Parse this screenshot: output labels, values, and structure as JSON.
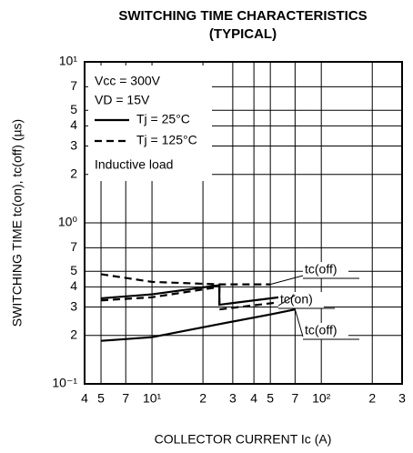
{
  "chart_data": {
    "type": "line",
    "title": "SWITCHING TIME CHARACTERISTICS",
    "subtitle": "(TYPICAL)",
    "x_label": "COLLECTOR CURRENT  Ic (A)",
    "y_label": "SWITCHING TIME  tc(on), tc(off) (µs)",
    "log_x": true,
    "log_y": true,
    "grid": true,
    "xlim": [
      4,
      300
    ],
    "ylim": [
      0.1,
      10
    ],
    "xticks": [
      4,
      5,
      7,
      {
        "value": 10,
        "label": "10¹"
      },
      {
        "value": 20,
        "label": "2"
      },
      {
        "value": 30,
        "label": "3"
      },
      {
        "value": 40,
        "label": "4"
      },
      {
        "value": 50,
        "label": "5"
      },
      {
        "value": 70,
        "label": "7"
      },
      {
        "value": 100,
        "label": "10²"
      },
      {
        "value": 200,
        "label": "2"
      },
      {
        "value": 300,
        "label": "3"
      }
    ],
    "yticks": [
      {
        "value": 0.1,
        "label": "10⁻¹"
      },
      {
        "value": 0.2,
        "label": "2"
      },
      {
        "value": 0.3,
        "label": "3"
      },
      {
        "value": 0.4,
        "label": "4"
      },
      {
        "value": 0.5,
        "label": "5"
      },
      {
        "value": 0.7,
        "label": "7"
      },
      {
        "value": 1,
        "label": "10⁰"
      },
      2,
      3,
      4,
      5,
      7,
      {
        "value": 10,
        "label": "10¹"
      }
    ],
    "color": "#000000",
    "legend": {
      "notes": [
        "Vcc = 300V",
        "VD = 15V"
      ],
      "items": [
        {
          "label": "Tj = 25°C",
          "dashed": false
        },
        {
          "label": "Tj = 125°C",
          "dashed": true
        }
      ],
      "footer": "Inductive load"
    },
    "series": [
      {
        "dashed": true,
        "annotation": "tc(off)",
        "x": [
          5,
          10,
          25,
          50
        ],
        "values": [
          0.48,
          0.43,
          0.415,
          0.415
        ]
      },
      {
        "dashed": false,
        "annotation": "tc(on)",
        "x": [
          5,
          10,
          25,
          25,
          70
        ],
        "values": [
          0.34,
          0.36,
          0.41,
          0.31,
          0.355
        ]
      },
      {
        "dashed": true,
        "x": [
          5,
          10,
          25,
          25,
          70
        ],
        "values": [
          0.33,
          0.345,
          0.4,
          0.29,
          0.33
        ]
      },
      {
        "dashed": false,
        "annotation": "tc(off)",
        "x": [
          5,
          10,
          25,
          50,
          70
        ],
        "values": [
          0.185,
          0.195,
          0.235,
          0.27,
          0.29
        ]
      }
    ]
  }
}
